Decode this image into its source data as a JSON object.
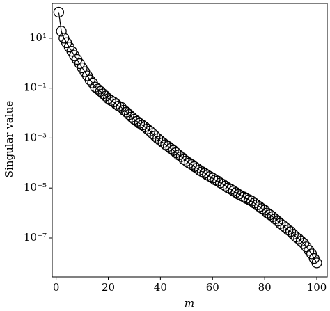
{
  "chart_data": {
    "type": "line",
    "xlabel": "m",
    "ylabel": "Singular value",
    "x": [
      1,
      2,
      3,
      4,
      5,
      6,
      7,
      8,
      9,
      10,
      11,
      12,
      13,
      14,
      15,
      16,
      17,
      18,
      19,
      20,
      21,
      22,
      23,
      24,
      25,
      26,
      27,
      28,
      29,
      30,
      31,
      32,
      33,
      34,
      35,
      36,
      37,
      38,
      39,
      40,
      41,
      42,
      43,
      44,
      45,
      46,
      47,
      48,
      49,
      50,
      51,
      52,
      53,
      54,
      55,
      56,
      57,
      58,
      59,
      60,
      61,
      62,
      63,
      64,
      65,
      66,
      67,
      68,
      69,
      70,
      71,
      72,
      73,
      74,
      75,
      76,
      77,
      78,
      79,
      80,
      81,
      82,
      83,
      84,
      85,
      86,
      87,
      88,
      89,
      90,
      91,
      92,
      93,
      94,
      95,
      96,
      97,
      98,
      99,
      100
    ],
    "series": [
      {
        "color": "#000000",
        "values": [
          110,
          19,
          10,
          6.6,
          4.4,
          3.0,
          2.0,
          1.4,
          0.95,
          0.65,
          0.45,
          0.31,
          0.21,
          0.16,
          0.11,
          0.091,
          0.074,
          0.059,
          0.048,
          0.038,
          0.032,
          0.028,
          0.023,
          0.019,
          0.017,
          0.013,
          0.011,
          0.0087,
          0.0069,
          0.0056,
          0.0047,
          0.0039,
          0.0033,
          0.0028,
          0.0023,
          0.0019,
          0.0015,
          0.0012,
          0.00095,
          0.00078,
          0.00065,
          0.00054,
          0.00046,
          0.00038,
          0.00032,
          0.00026,
          0.00021,
          0.00018,
          0.00014,
          0.00012,
          0.0001,
          8.7e-05,
          7.2e-05,
          6.2e-05,
          5.2e-05,
          4.5e-05,
          3.9e-05,
          3.3e-05,
          2.9e-05,
          2.5e-05,
          2.1e-05,
          1.9e-05,
          1.6e-05,
          1.4e-05,
          1.2e-05,
          1e-05,
          8.9e-06,
          7.6e-06,
          6.6e-06,
          5.6e-06,
          4.9e-06,
          4.4e-06,
          3.8e-06,
          3.4e-06,
          3e-06,
          2.5e-06,
          2.1e-06,
          1.8e-06,
          1.5e-06,
          1.3e-06,
          1e-06,
          8.5e-07,
          7.1e-07,
          5.8e-07,
          4.7e-07,
          3.8e-07,
          3.2e-07,
          2.6e-07,
          2.1e-07,
          1.8e-07,
          1.4e-07,
          1.1e-07,
          9.3e-08,
          7.4e-08,
          6e-08,
          4.4e-08,
          3.2e-08,
          2.3e-08,
          1.5e-08,
          1e-08
        ]
      }
    ],
    "xlim": [
      -1.5,
      104
    ],
    "xticks": [
      0,
      20,
      40,
      60,
      80,
      100
    ],
    "ylim": [
      2.75e-09,
      245
    ],
    "ylog": true,
    "yticks": [
      {
        "value": 10,
        "label": "10¹"
      },
      {
        "value": 0.1,
        "label": "10⁻¹"
      },
      {
        "value": 0.001,
        "label": "10⁻³"
      },
      {
        "value": 1e-05,
        "label": "10⁻⁵"
      },
      {
        "value": 1e-07,
        "label": "10⁻⁷"
      }
    ],
    "marker": "circle"
  }
}
